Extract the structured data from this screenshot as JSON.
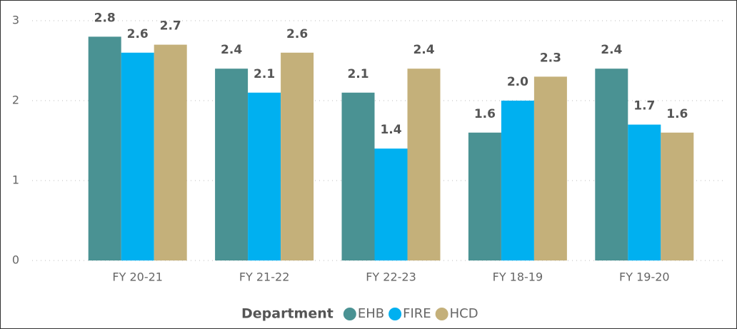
{
  "chart_data": {
    "type": "bar",
    "categories": [
      "FY 20-21",
      "FY 21-22",
      "FY 22-23",
      "FY 18-19",
      "FY 19-20"
    ],
    "legend_title": "Department",
    "series": [
      {
        "name": "EHB",
        "color": "#4a9293",
        "values": [
          2.8,
          2.4,
          2.1,
          1.6,
          2.4
        ],
        "value_labels": [
          "2.8",
          "2.4",
          "2.1",
          "1.6",
          "2.4"
        ]
      },
      {
        "name": "FIRE",
        "color": "#00b0f0",
        "values": [
          2.6,
          2.1,
          1.4,
          2.0,
          1.7
        ],
        "value_labels": [
          "2.6",
          "2.1",
          "1.4",
          "2.0",
          "1.7"
        ]
      },
      {
        "name": "HCD",
        "color": "#c4b07a",
        "values": [
          2.7,
          2.6,
          2.4,
          2.3,
          1.6
        ],
        "value_labels": [
          "2.7",
          "2.6",
          "2.4",
          "2.3",
          "1.6"
        ]
      }
    ],
    "ylim": [
      0,
      3
    ],
    "yticks": [
      0,
      1,
      2,
      3
    ],
    "grid": true,
    "legend": "bottom"
  }
}
